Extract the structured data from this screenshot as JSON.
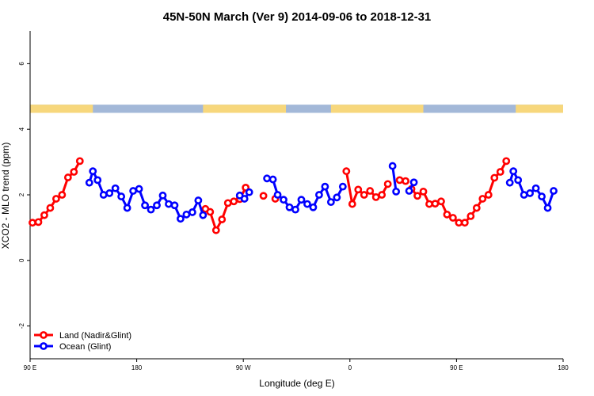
{
  "chart_data": {
    "type": "line",
    "title": "45N-50N March (Ver 9)   2014-09-06 to 2018-12-31",
    "xlabel": "Longitude (deg E)",
    "ylabel": "XCO2 - MLO trend (ppm)",
    "xlim": [
      90,
      540
    ],
    "ylim": [
      -3,
      7
    ],
    "x_ticks": [
      {
        "value": 90,
        "label": "90 E"
      },
      {
        "value": 180,
        "label": "180"
      },
      {
        "value": 270,
        "label": "90 W"
      },
      {
        "value": 360,
        "label": "0"
      },
      {
        "value": 450,
        "label": "90 E"
      },
      {
        "value": 540,
        "label": "180"
      }
    ],
    "y_ticks": [
      {
        "value": -2,
        "label": "-2"
      },
      {
        "value": 0,
        "label": "0"
      },
      {
        "value": 2,
        "label": "2"
      },
      {
        "value": 4,
        "label": "4"
      },
      {
        "value": 6,
        "label": "6"
      }
    ],
    "legend_position": "bottom-left",
    "map_strip": {
      "y_range": [
        4.5,
        4.75
      ],
      "land_color": "#f7d77c",
      "ocean_color": "#a3b8d8",
      "land_intervals": [
        [
          90,
          143
        ],
        [
          236,
          306
        ],
        [
          344,
          422
        ],
        [
          500,
          540
        ]
      ]
    },
    "series": [
      {
        "name": "Land (Nadir&Glint)",
        "color": "#ff0000",
        "segments": [
          [
            [
              92,
              1.15
            ],
            [
              97,
              1.17
            ],
            [
              102,
              1.38
            ],
            [
              107,
              1.6
            ],
            [
              112,
              1.88
            ],
            [
              117,
              2.0
            ],
            [
              122,
              2.53
            ],
            [
              127,
              2.7
            ],
            [
              132,
              3.03
            ]
          ],
          [
            [
              238,
              1.57
            ],
            [
              242,
              1.48
            ],
            [
              247,
              0.92
            ],
            [
              252,
              1.25
            ],
            [
              257,
              1.75
            ],
            [
              262,
              1.8
            ],
            [
              267,
              1.87
            ],
            [
              272,
              2.22
            ]
          ],
          [
            [
              287,
              1.97
            ]
          ],
          [
            [
              297,
              1.88
            ]
          ],
          [
            [
              357,
              2.72
            ],
            [
              362,
              1.72
            ],
            [
              367,
              2.16
            ],
            [
              372,
              2.0
            ],
            [
              377,
              2.12
            ],
            [
              382,
              1.93
            ],
            [
              387,
              2.0
            ],
            [
              392,
              2.33
            ]
          ],
          [
            [
              402,
              2.45
            ],
            [
              407,
              2.42
            ]
          ],
          [
            [
              412,
              2.18
            ],
            [
              417,
              1.97
            ],
            [
              422,
              2.1
            ],
            [
              427,
              1.72
            ],
            [
              432,
              1.73
            ],
            [
              437,
              1.8
            ],
            [
              442,
              1.4
            ],
            [
              447,
              1.3
            ],
            [
              452,
              1.15
            ],
            [
              457,
              1.15
            ],
            [
              462,
              1.35
            ],
            [
              467,
              1.6
            ],
            [
              472,
              1.88
            ],
            [
              477,
              2.0
            ],
            [
              482,
              2.52
            ],
            [
              487,
              2.7
            ],
            [
              492,
              3.03
            ]
          ]
        ]
      },
      {
        "name": "Ocean (Glint)",
        "color": "#0000ff",
        "segments": [
          [
            [
              140,
              2.37
            ],
            [
              143,
              2.72
            ],
            [
              147,
              2.45
            ],
            [
              152,
              2.0
            ],
            [
              157,
              2.05
            ],
            [
              162,
              2.2
            ],
            [
              167,
              1.95
            ],
            [
              172,
              1.6
            ],
            [
              177,
              2.12
            ],
            [
              182,
              2.18
            ],
            [
              187,
              1.68
            ],
            [
              192,
              1.55
            ],
            [
              197,
              1.68
            ],
            [
              202,
              1.98
            ],
            [
              207,
              1.72
            ],
            [
              212,
              1.68
            ],
            [
              217,
              1.27
            ],
            [
              222,
              1.4
            ],
            [
              227,
              1.47
            ],
            [
              232,
              1.83
            ],
            [
              236,
              1.38
            ]
          ],
          [
            [
              267,
              1.98
            ],
            [
              271,
              1.88
            ],
            [
              275,
              2.08
            ]
          ],
          [
            [
              290,
              2.5
            ],
            [
              295,
              2.47
            ],
            [
              299,
              2.0
            ],
            [
              304,
              1.85
            ],
            [
              309,
              1.62
            ],
            [
              314,
              1.55
            ],
            [
              319,
              1.85
            ],
            [
              324,
              1.72
            ],
            [
              329,
              1.62
            ],
            [
              334,
              2.0
            ],
            [
              339,
              2.25
            ],
            [
              344,
              1.78
            ],
            [
              349,
              1.92
            ],
            [
              354,
              2.25
            ]
          ],
          [
            [
              396,
              2.88
            ],
            [
              399,
              2.1
            ]
          ],
          [
            [
              410,
              2.12
            ],
            [
              414,
              2.38
            ]
          ],
          [
            [
              495,
              2.37
            ],
            [
              498,
              2.72
            ],
            [
              502,
              2.45
            ],
            [
              507,
              2.0
            ],
            [
              512,
              2.05
            ],
            [
              517,
              2.2
            ],
            [
              522,
              1.95
            ],
            [
              527,
              1.6
            ],
            [
              532,
              2.12
            ]
          ]
        ]
      }
    ]
  }
}
